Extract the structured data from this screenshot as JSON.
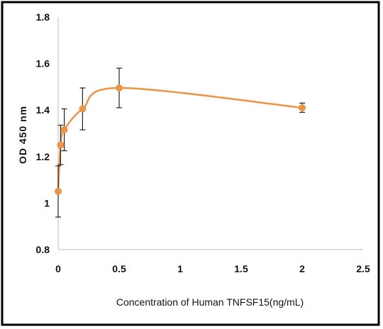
{
  "chart_data": {
    "type": "scatter",
    "title": "",
    "xlabel": "Concentration of Human TNFSF15(ng/mL)",
    "ylabel": "OD 450 nm",
    "xlim": [
      0,
      2.5
    ],
    "ylim": [
      0.8,
      1.8
    ],
    "x_ticks": [
      "0",
      "0.5",
      "1",
      "1.5",
      "2",
      "2.5"
    ],
    "y_ticks": [
      "0.8",
      "1",
      "1.2",
      "1.4",
      "1.6",
      "1.8"
    ],
    "x_tick_values": [
      0,
      0.5,
      1,
      1.5,
      2,
      2.5
    ],
    "y_tick_values": [
      0.8,
      1.0,
      1.2,
      1.4,
      1.6,
      1.8
    ],
    "grid": false,
    "smooth_line": true,
    "series": [
      {
        "color": "#ED9344",
        "points": [
          {
            "x": 0,
            "y": 1.05,
            "err": 0.11
          },
          {
            "x": 0.02,
            "y": 1.25,
            "err": 0.085
          },
          {
            "x": 0.05,
            "y": 1.315,
            "err": 0.09
          },
          {
            "x": 0.2,
            "y": 1.405,
            "err": 0.09
          },
          {
            "x": 0.5,
            "y": 1.495,
            "err": 0.085
          },
          {
            "x": 2.0,
            "y": 1.41,
            "err": 0.02
          }
        ]
      }
    ]
  }
}
